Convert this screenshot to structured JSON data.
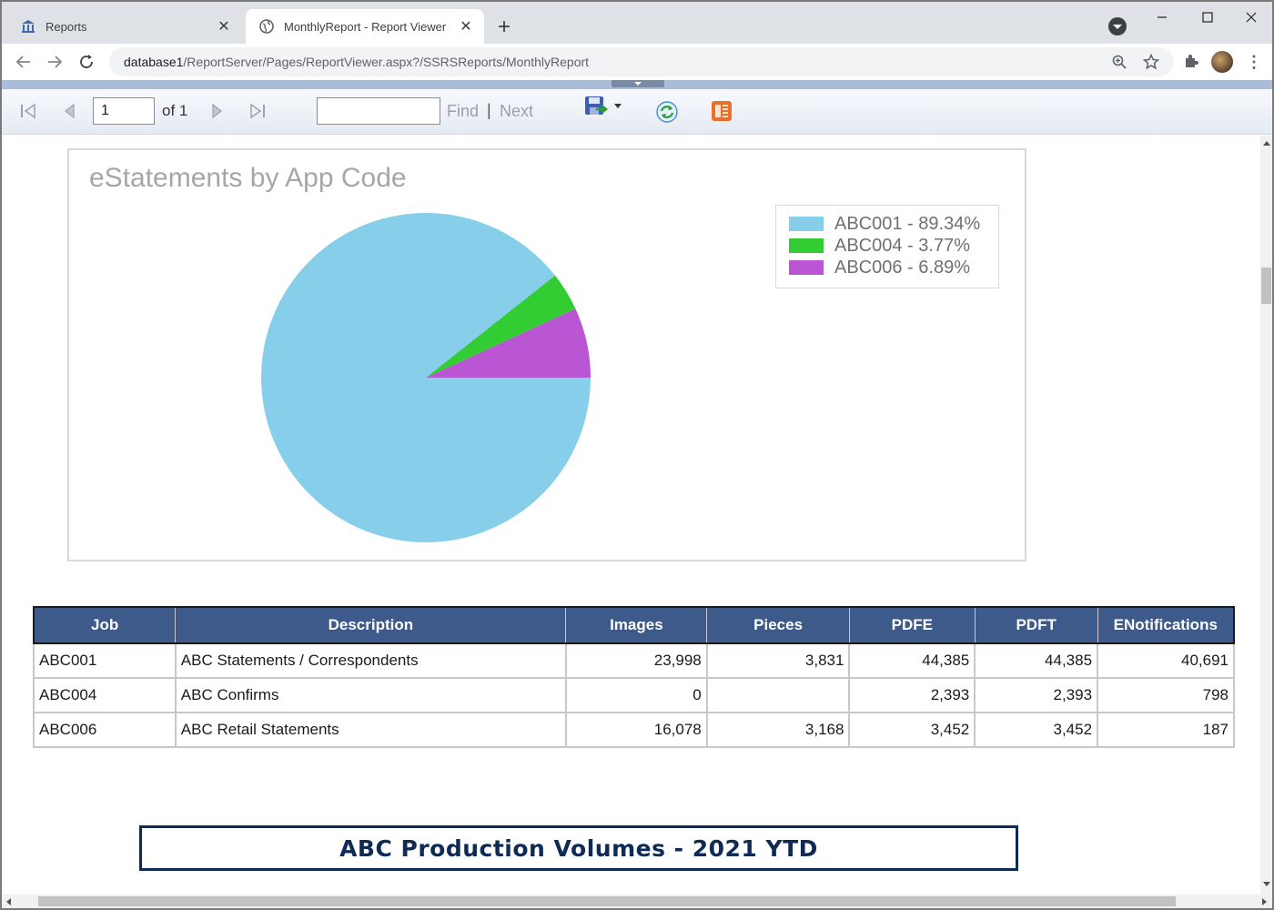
{
  "browser": {
    "tabs": [
      {
        "title": "Reports",
        "icon": "bank-icon",
        "active": false
      },
      {
        "title": "MonthlyReport - Report Viewer",
        "icon": "globe-icon",
        "active": true
      }
    ],
    "address": {
      "host": "database1",
      "path": "/ReportServer/Pages/ReportViewer.aspx?/SSRSReports/MonthlyReport"
    }
  },
  "viewer": {
    "page_value": "1",
    "of_label": "of 1",
    "find_label": "Find",
    "next_label": "Next",
    "find_value": ""
  },
  "chart_data": {
    "type": "pie",
    "title": "eStatements by App Code",
    "categories": [
      "ABC001",
      "ABC004",
      "ABC006"
    ],
    "values": [
      89.34,
      3.77,
      6.89
    ],
    "legend_labels": [
      "ABC001 - 89.34%",
      "ABC004 - 3.77%",
      "ABC006 - 6.89%"
    ],
    "colors": [
      "#87ceeb",
      "#32cd32",
      "#ba55d3"
    ],
    "legend_position": "top-right"
  },
  "table": {
    "headers": [
      "Job",
      "Description",
      "Images",
      "Pieces",
      "PDFE",
      "PDFT",
      "ENotifications"
    ],
    "rows": [
      [
        "ABC001",
        "ABC Statements / Correspondents",
        "23,998",
        "3,831",
        "44,385",
        "44,385",
        "40,691"
      ],
      [
        "ABC004",
        "ABC Confirms",
        "0",
        "",
        "2,393",
        "2,393",
        "798"
      ],
      [
        "ABC006",
        "ABC Retail Statements",
        "16,078",
        "3,168",
        "3,452",
        "3,452",
        "187"
      ]
    ]
  },
  "banner": {
    "text": "ABC Production Volumes - 2021 YTD"
  }
}
